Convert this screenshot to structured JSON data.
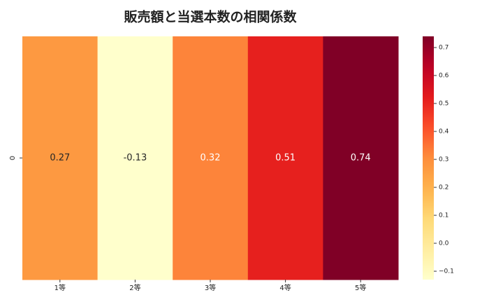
{
  "chart_data": {
    "type": "heatmap",
    "title": "販売額と当選本数の相関係数",
    "x_categories": [
      "1等",
      "2等",
      "3等",
      "4等",
      "5等"
    ],
    "y_categories": [
      "0"
    ],
    "values": [
      [
        0.27,
        -0.13,
        0.32,
        0.51,
        0.74
      ]
    ],
    "colormap": "YlOrRd",
    "zlim": [
      -0.13,
      0.74
    ],
    "zticks": [
      -0.1,
      0.0,
      0.1,
      0.2,
      0.3,
      0.4,
      0.5,
      0.6,
      0.7
    ],
    "zticks_labels": [
      "−0.1",
      "0.0",
      "0.1",
      "0.2",
      "0.3",
      "0.4",
      "0.5",
      "0.6",
      "0.7"
    ]
  }
}
